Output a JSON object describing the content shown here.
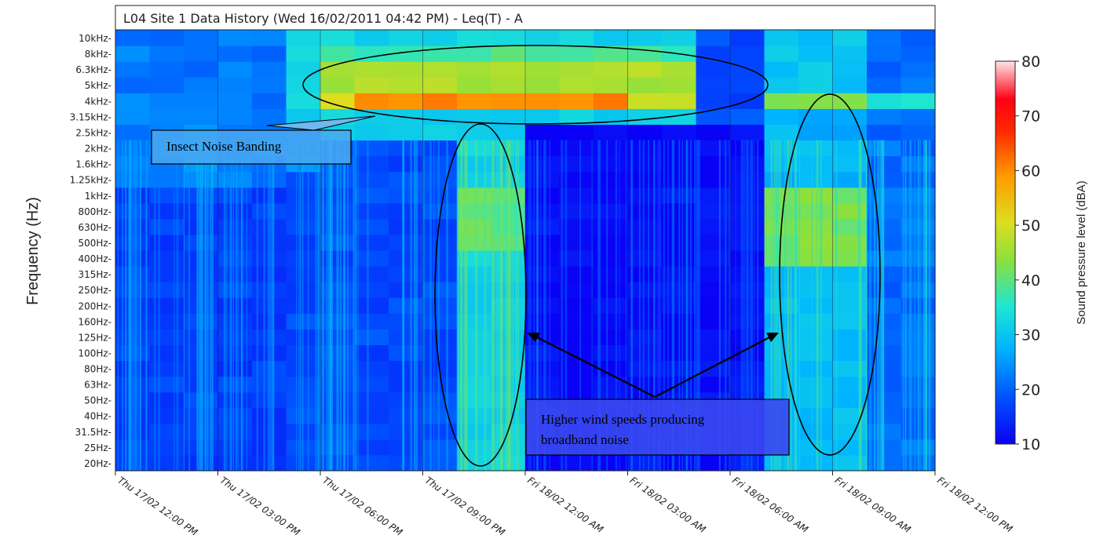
{
  "chart_data": {
    "type": "heatmap",
    "title": "L04 Site 1 Data History (Wed 16/02/2011 04:42 PM) - Leq(T) - A",
    "ylabel": "Frequency (Hz)",
    "xlabel": "",
    "y_categories": [
      "20Hz",
      "25Hz",
      "31.5Hz",
      "40Hz",
      "50Hz",
      "63Hz",
      "80Hz",
      "100Hz",
      "125Hz",
      "160Hz",
      "200Hz",
      "250Hz",
      "315Hz",
      "400Hz",
      "500Hz",
      "630Hz",
      "800Hz",
      "1kHz",
      "1.25kHz",
      "1.6kHz",
      "2kHz",
      "2.5kHz",
      "3.15kHz",
      "4kHz",
      "5kHz",
      "6.3kHz",
      "8kHz",
      "10kHz"
    ],
    "x_ticks": [
      "Thu 17/02 12:00 PM",
      "Thu 17/02 03:00 PM",
      "Thu 17/02 06:00 PM",
      "Thu 17/02 09:00 PM",
      "Fri 18/02 12:00 AM",
      "Fri 18/02 03:00 AM",
      "Fri 18/02 06:00 AM",
      "Fri 18/02 09:00 AM",
      "Fri 18/02 12:00 PM"
    ],
    "x_range": [
      "Thu 17/02 12:00 PM",
      "Fri 18/02 12:00 PM"
    ],
    "colorbar": {
      "label": "Sound pressure level (dBA)",
      "ticks": [
        "10",
        "20",
        "30",
        "40",
        "50",
        "60",
        "70",
        "80"
      ],
      "range": [
        10,
        80
      ],
      "colormap": [
        "#0a00f5",
        "#0050ff",
        "#00b4ff",
        "#1ee6d2",
        "#8ce03c",
        "#dede1e",
        "#ff9a00",
        "#ff2800",
        "#ff0014",
        "#ffe6e6"
      ]
    },
    "regions": [
      {
        "x": [
          "Thu 17/02 12:00 PM",
          "Thu 17/02 05:00 PM"
        ],
        "y": [
          "20Hz",
          "2.5kHz"
        ],
        "level": 20
      },
      {
        "x": [
          "Thu 17/02 05:00 PM",
          "Thu 17/02 10:00 PM"
        ],
        "y": [
          "2.5kHz",
          "10kHz"
        ],
        "level": 45
      },
      {
        "x": [
          "Thu 17/02 06:00 PM",
          "Fri 18/02 05:00 AM"
        ],
        "y": [
          "4kHz",
          "4kHz"
        ],
        "level": 52
      },
      {
        "x": [
          "Thu 17/02 10:00 PM",
          "Thu 17/02 11:00 PM"
        ],
        "y": [
          "20Hz",
          "2.5kHz"
        ],
        "level": 35
      },
      {
        "x": [
          "Fri 18/02 12:00 AM",
          "Fri 18/02 07:00 AM"
        ],
        "y": [
          "20Hz",
          "2.5kHz"
        ],
        "level": 12
      },
      {
        "x": [
          "Fri 18/02 07:00 AM",
          "Fri 18/02 10:00 AM"
        ],
        "y": [
          "400Hz",
          "1kHz"
        ],
        "level": 42
      },
      {
        "x": [
          "Fri 18/02 07:00 AM",
          "Fri 18/02 10:00 AM"
        ],
        "y": [
          "20Hz",
          "315Hz"
        ],
        "level": 28
      }
    ],
    "annotations": [
      {
        "text": "Insect Noise Banding"
      },
      {
        "text_lines": [
          "Higher wind speeds producing",
          "broadband noise"
        ]
      }
    ]
  }
}
